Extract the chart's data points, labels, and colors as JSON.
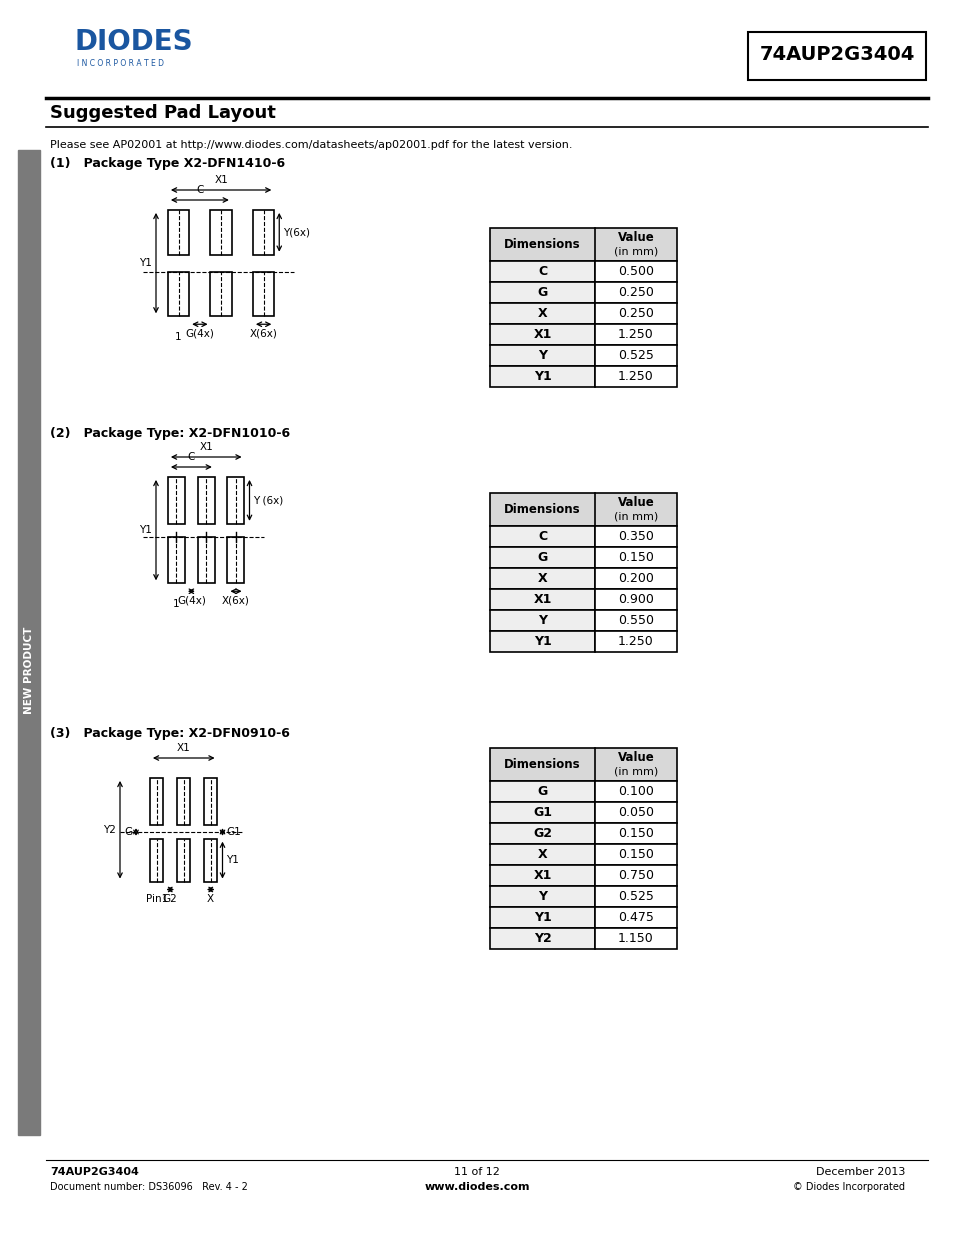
{
  "title": "Suggested Pad Layout",
  "part_number": "74AUP2G3404",
  "subtitle": "Please see AP02001 at http://www.diodes.com/datasheets/ap02001.pdf for the latest version.",
  "package1_label": "(1)   Package Type X2-DFN1410-6",
  "package2_label": "(2)   Package Type: X2-DFN1010-6",
  "package3_label": "(3)   Package Type: X2-DFN0910-6",
  "table1_dims": [
    "C",
    "G",
    "X",
    "X1",
    "Y",
    "Y1"
  ],
  "table1_vals": [
    "0.500",
    "0.250",
    "0.250",
    "1.250",
    "0.525",
    "1.250"
  ],
  "table2_dims": [
    "C",
    "G",
    "X",
    "X1",
    "Y",
    "Y1"
  ],
  "table2_vals": [
    "0.350",
    "0.150",
    "0.200",
    "0.900",
    "0.550",
    "1.250"
  ],
  "table3_dims": [
    "G",
    "G1",
    "G2",
    "X",
    "X1",
    "Y",
    "Y1",
    "Y2"
  ],
  "table3_vals": [
    "0.100",
    "0.050",
    "0.150",
    "0.150",
    "0.750",
    "0.525",
    "0.475",
    "1.150"
  ],
  "footer_left1": "74AUP2G3404",
  "footer_left2": "Document number: DS36096   Rev. 4 - 2",
  "footer_center1": "11 of 12",
  "footer_center2": "www.diodes.com",
  "footer_right1": "December 2013",
  "footer_right2": "© Diodes Incorporated",
  "sidebar_text": "NEW PRODUCT",
  "bg_color": "#ffffff",
  "sidebar_color": "#7a7a7a",
  "header_blue": "#1a56a0",
  "table_header_bg": "#d8d8d8"
}
